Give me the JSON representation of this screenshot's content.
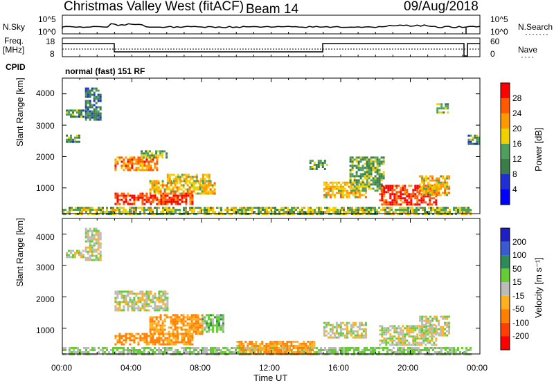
{
  "header": {
    "station": "Christmas Valley West (fitACF)",
    "beam": "Beam 14",
    "date": "09/Aug/2018"
  },
  "panels": {
    "nsky_label": "N.Sky",
    "nsky_ticks": [
      "10^5",
      "10^0"
    ],
    "nsearch_label": "N.Search",
    "nsearch_ticks": [
      "10^5",
      "10^0"
    ],
    "freq_label_1": "Freq.",
    "freq_label_2": "[MHz]",
    "freq_ticks": [
      "18",
      "8"
    ],
    "nave_label": "Nave",
    "nave_ticks": [
      "60",
      "0"
    ],
    "cpid_label": "CPID",
    "cpid_text": "normal (fast) 151 RF"
  },
  "axes": {
    "x_label": "Time UT",
    "x_ticks": [
      "00:00",
      "04:00",
      "08:00",
      "12:00",
      "16:00",
      "20:00",
      "00:00"
    ],
    "y_label": "Slant Range [km]",
    "y_ticks": [
      "1000",
      "2000",
      "3000",
      "4000"
    ]
  },
  "colorbars": {
    "power_label": "Power [dB]",
    "power_ticks": [
      "4",
      "8",
      "12",
      "16",
      "20",
      "24",
      "28"
    ],
    "power_colors": [
      "#0000ff",
      "#2030d0",
      "#3a7d4a",
      "#4fa060",
      "#f0d000",
      "#ff9900",
      "#ff5a00",
      "#ff0000"
    ],
    "velocity_label": "Velocity [m s⁻¹]",
    "velocity_ticks": [
      "200",
      "100",
      "50",
      "15",
      "-15",
      "-50",
      "-100",
      "-200"
    ],
    "velocity_colors": [
      "#2020c0",
      "#3a5ad0",
      "#2e8b57",
      "#66cc33",
      "#bbbbbb",
      "#ffb020",
      "#ff8000",
      "#ff4000",
      "#ff0000"
    ]
  },
  "chart_data": [
    {
      "type": "heatmap",
      "title": "Power [dB]",
      "xlabel": "Time UT",
      "ylabel": "Slant Range [km]",
      "xlim_hours": [
        0,
        24
      ],
      "ylim_km": [
        180,
        4500
      ],
      "regions": [
        {
          "t0": 0.2,
          "t1": 1.2,
          "r0": 3300,
          "r1": 3500,
          "value": 12
        },
        {
          "t0": 1.3,
          "t1": 2.2,
          "r0": 3200,
          "r1": 4200,
          "value": 10
        },
        {
          "t0": 0.2,
          "t1": 1.0,
          "r0": 2500,
          "r1": 2700,
          "value": 12
        },
        {
          "t0": 3.0,
          "t1": 5.5,
          "r0": 1600,
          "r1": 2000,
          "value": 24
        },
        {
          "t0": 4.5,
          "t1": 6.0,
          "r0": 2000,
          "r1": 2200,
          "value": 14
        },
        {
          "t0": 3.0,
          "t1": 7.5,
          "r0": 500,
          "r1": 850,
          "value": 28
        },
        {
          "t0": 5.0,
          "t1": 8.8,
          "r0": 850,
          "r1": 1250,
          "value": 20
        },
        {
          "t0": 6.0,
          "t1": 8.5,
          "r0": 1150,
          "r1": 1450,
          "value": 18
        },
        {
          "t0": 0.0,
          "t1": 23.5,
          "r0": 200,
          "r1": 400,
          "value": 16
        },
        {
          "t0": 14.2,
          "t1": 15.2,
          "r0": 1600,
          "r1": 1900,
          "value": 14
        },
        {
          "t0": 15.0,
          "t1": 17.5,
          "r0": 700,
          "r1": 1200,
          "value": 20
        },
        {
          "t0": 16.5,
          "t1": 18.5,
          "r0": 900,
          "r1": 2000,
          "value": 14
        },
        {
          "t0": 18.2,
          "t1": 21.5,
          "r0": 500,
          "r1": 1100,
          "value": 28
        },
        {
          "t0": 20.5,
          "t1": 22.2,
          "r0": 800,
          "r1": 1400,
          "value": 20
        },
        {
          "t0": 21.5,
          "t1": 22.2,
          "r0": 3400,
          "r1": 3700,
          "value": 14
        },
        {
          "t0": 23.3,
          "t1": 24.0,
          "r0": 2400,
          "r1": 2700,
          "value": 12
        }
      ]
    },
    {
      "type": "heatmap",
      "title": "Velocity [m s⁻¹]",
      "xlabel": "Time UT",
      "ylabel": "Slant Range [km]",
      "xlim_hours": [
        0,
        24
      ],
      "ylim_km": [
        180,
        4500
      ],
      "regions": [
        {
          "t0": 0.2,
          "t1": 1.2,
          "r0": 3300,
          "r1": 3500,
          "value": 0
        },
        {
          "t0": 1.3,
          "t1": 2.2,
          "r0": 3200,
          "r1": 4200,
          "value": 0
        },
        {
          "t0": 3.0,
          "t1": 6.0,
          "r0": 1600,
          "r1": 2200,
          "value": 0
        },
        {
          "t0": 3.0,
          "t1": 7.5,
          "r0": 500,
          "r1": 850,
          "value": -60
        },
        {
          "t0": 5.0,
          "t1": 8.0,
          "r0": 850,
          "r1": 1450,
          "value": -50
        },
        {
          "t0": 8.0,
          "t1": 9.3,
          "r0": 900,
          "r1": 1450,
          "value": 30
        },
        {
          "t0": 0.0,
          "t1": 23.5,
          "r0": 200,
          "r1": 400,
          "value": 20
        },
        {
          "t0": 10.0,
          "t1": 14.5,
          "r0": 200,
          "r1": 600,
          "value": -50
        },
        {
          "t0": 15.0,
          "t1": 17.5,
          "r0": 700,
          "r1": 1200,
          "value": 0
        },
        {
          "t0": 18.2,
          "t1": 21.5,
          "r0": 500,
          "r1": 1100,
          "value": 0
        },
        {
          "t0": 20.5,
          "t1": 22.2,
          "r0": 800,
          "r1": 1400,
          "value": 0
        }
      ]
    }
  ]
}
